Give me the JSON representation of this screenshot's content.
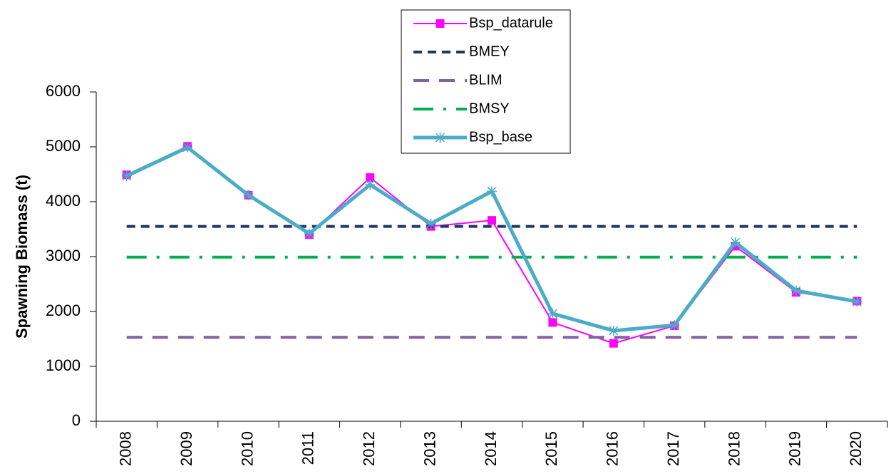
{
  "chart_data": {
    "type": "line",
    "y_label": "Spawning Biomass (t)",
    "categories": [
      "2008",
      "2009",
      "2010",
      "2011",
      "2012",
      "2013",
      "2014",
      "2015",
      "2016",
      "2017",
      "2018",
      "2019",
      "2020"
    ],
    "ylim": [
      0,
      6000
    ],
    "yticks": [
      0,
      1000,
      2000,
      3000,
      4000,
      5000,
      6000
    ],
    "grid": false,
    "legend": "top",
    "series": [
      {
        "name": "Bsp_datarule",
        "color": "#ff00ff",
        "width": 2,
        "dash": "solid",
        "marker": "square",
        "values": [
          4490,
          5010,
          4120,
          3400,
          4440,
          3550,
          3660,
          1800,
          1420,
          1740,
          3190,
          2350,
          2190
        ]
      },
      {
        "name": "BMEY",
        "color": "#1f3864",
        "width": 4,
        "dash": "dash",
        "marker": "none",
        "values": [
          3550,
          3550,
          3550,
          3550,
          3550,
          3550,
          3550,
          3550,
          3550,
          3550,
          3550,
          3550,
          3550
        ]
      },
      {
        "name": "BLIM",
        "color": "#8064a2",
        "width": 4,
        "dash": "longdash",
        "marker": "none",
        "values": [
          1530,
          1530,
          1530,
          1530,
          1530,
          1530,
          1530,
          1530,
          1530,
          1530,
          1530,
          1530,
          1530
        ]
      },
      {
        "name": "BMSY",
        "color": "#00b050",
        "width": 4,
        "dash": "dashdot",
        "marker": "none",
        "values": [
          2990,
          2990,
          2990,
          2990,
          2990,
          2990,
          2990,
          2990,
          2990,
          2990,
          2990,
          2990,
          2990
        ]
      },
      {
        "name": "Bsp_base",
        "color": "#4bacc6",
        "width": 5,
        "dash": "solid",
        "marker": "star",
        "values": [
          4470,
          4990,
          4120,
          3420,
          4310,
          3600,
          4190,
          1960,
          1650,
          1750,
          3260,
          2380,
          2180
        ]
      }
    ]
  }
}
